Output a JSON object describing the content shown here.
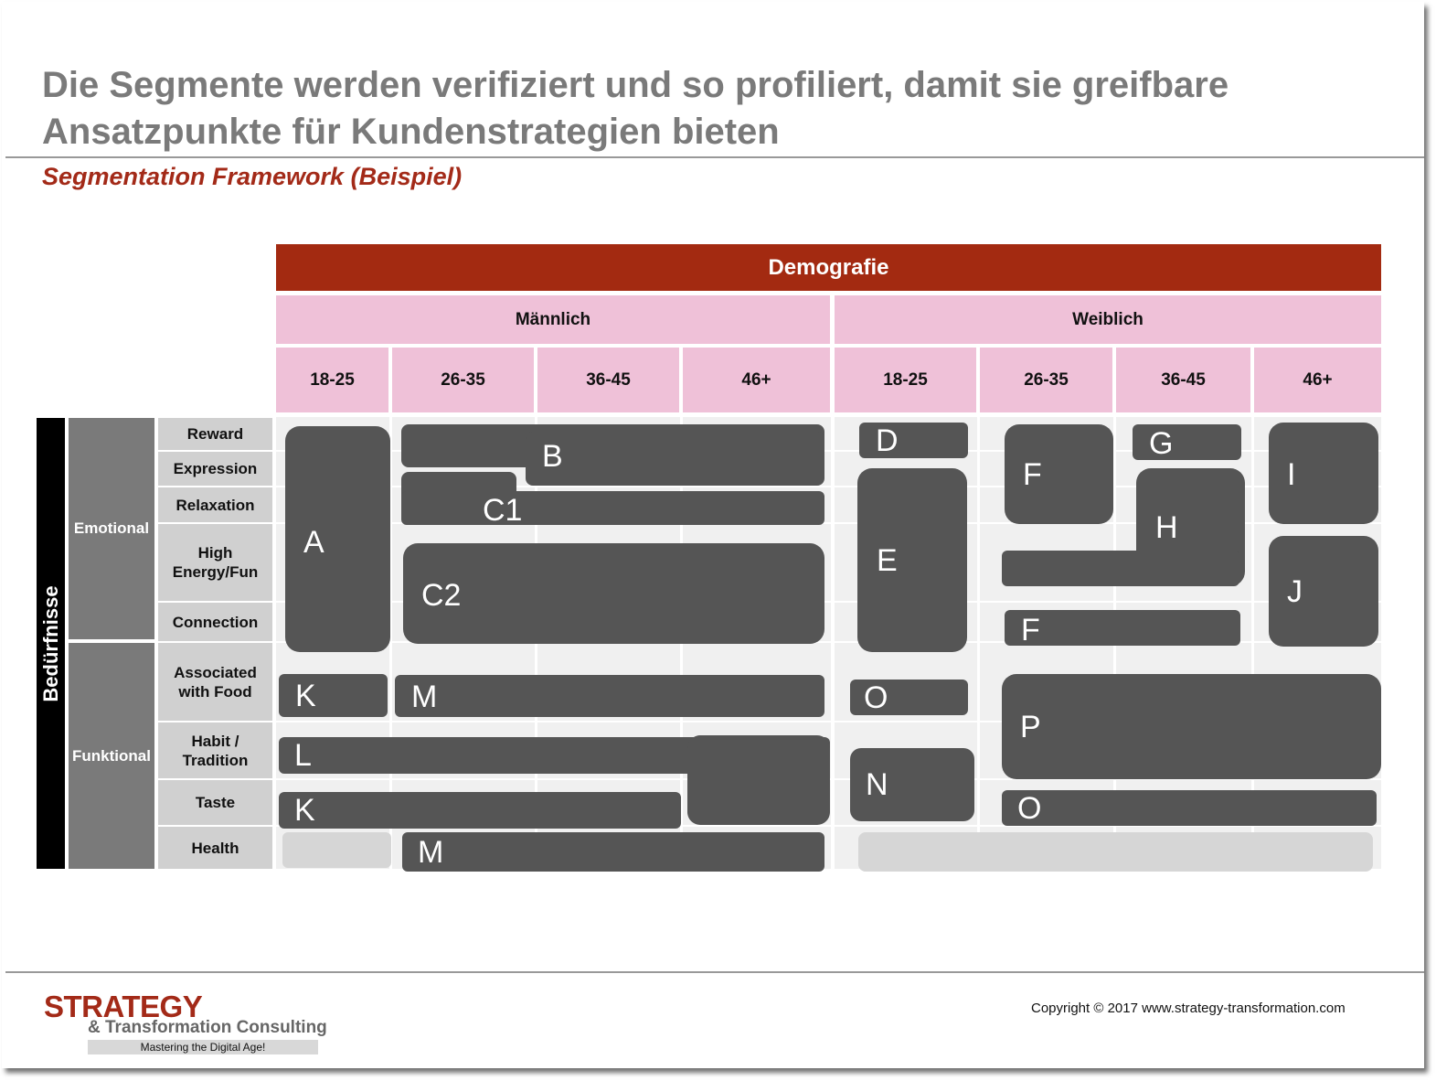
{
  "title": "Die Segmente werden verifiziert und so profiliert, damit sie greifbare Ansatzpunkte für Kundenstrategien bieten",
  "subtitle": "Segmentation Framework (Beispiel)",
  "demographics": {
    "header": "Demografie",
    "genders": [
      "Männlich",
      "Weiblich"
    ],
    "ages_male": [
      "18-25",
      "26-35",
      "36-45",
      "46+"
    ],
    "ages_female": [
      "18-25",
      "26-35",
      "36-45",
      "46+"
    ]
  },
  "needs": {
    "label": "Bedürfnisse",
    "categories": [
      "Emotional",
      "Funktional"
    ],
    "subcategories": [
      "Reward",
      "Expression",
      "Relaxation",
      "High Energy/Fun",
      "Connection",
      "Associated with Food",
      "Habit / Tradition",
      "Taste",
      "Health"
    ]
  },
  "segments": [
    "A",
    "B",
    "C1",
    "C2",
    "D",
    "E",
    "F",
    "G",
    "H",
    "I",
    "J",
    "F",
    "K",
    "M",
    "L",
    "K",
    "M",
    "O",
    "N",
    "P",
    "O"
  ],
  "footer": {
    "logo_line1": "STRATEGY",
    "logo_line2": "& Transformation Consulting",
    "logo_tagline": "Mastering the Digital Age!",
    "copyright": "Copyright © 2017 www.strategy-transformation.com"
  },
  "colors": {
    "accent": "#a32a11",
    "pink": "#efc1d8",
    "segment": "#555555",
    "category": "#7a7a7a"
  }
}
